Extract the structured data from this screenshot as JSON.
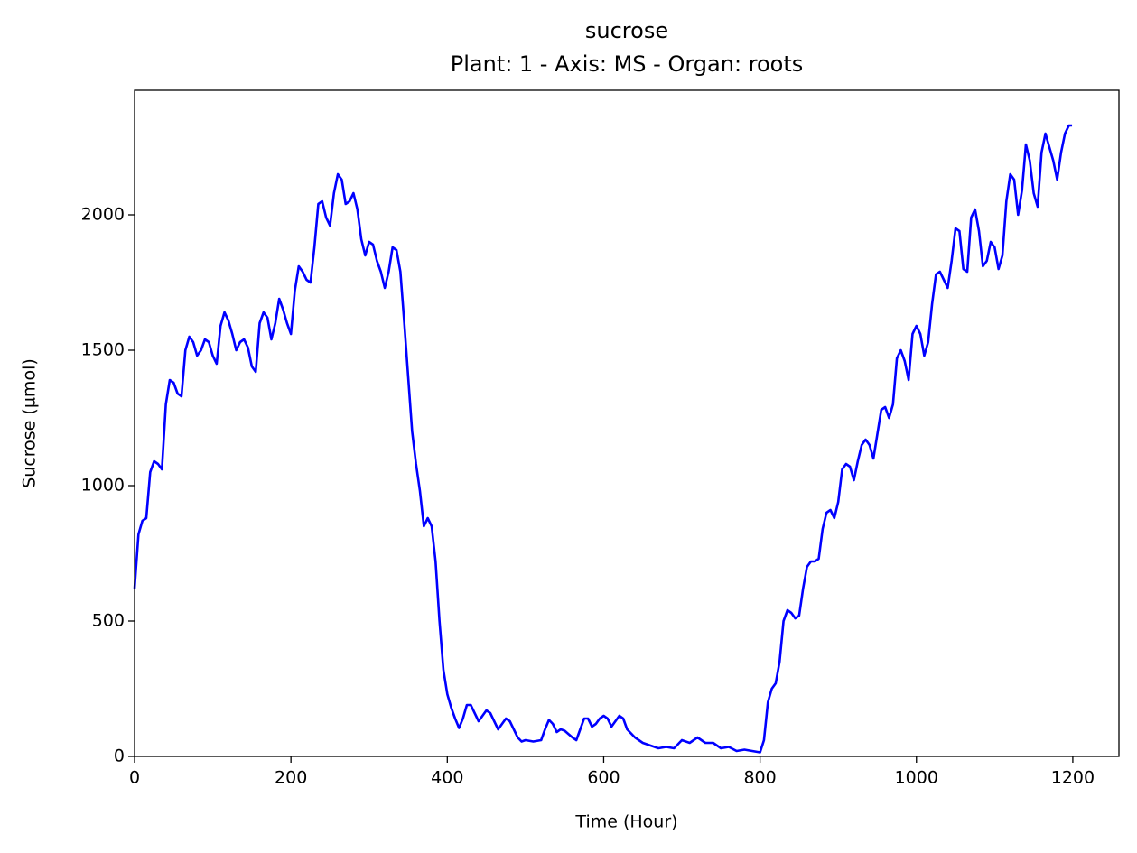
{
  "chart_data": {
    "type": "line",
    "title": "sucrose",
    "subtitle": "Plant: 1 - Axis: MS - Organ: roots",
    "x_label": "Time (Hour)",
    "y_label": "Sucrose (µmol)",
    "color": "#0000ff",
    "xlim": [
      0,
      1259
    ],
    "ylim": [
      0,
      2460
    ],
    "xticks": [
      0,
      200,
      400,
      600,
      800,
      1000,
      1200
    ],
    "yticks": [
      0,
      500,
      1000,
      1500,
      2000
    ],
    "x": [
      0,
      5,
      10,
      15,
      20,
      25,
      30,
      35,
      40,
      45,
      50,
      55,
      60,
      65,
      70,
      75,
      80,
      85,
      90,
      95,
      100,
      105,
      110,
      115,
      120,
      125,
      130,
      135,
      140,
      145,
      150,
      155,
      160,
      165,
      170,
      175,
      180,
      185,
      190,
      195,
      200,
      205,
      210,
      215,
      220,
      225,
      230,
      235,
      240,
      245,
      250,
      255,
      260,
      265,
      270,
      275,
      280,
      285,
      290,
      295,
      300,
      305,
      310,
      315,
      320,
      325,
      330,
      335,
      340,
      345,
      350,
      355,
      360,
      365,
      370,
      375,
      380,
      385,
      390,
      395,
      400,
      405,
      410,
      415,
      420,
      425,
      430,
      435,
      440,
      445,
      450,
      455,
      460,
      465,
      470,
      475,
      480,
      485,
      490,
      495,
      500,
      510,
      520,
      525,
      530,
      535,
      540,
      545,
      550,
      560,
      565,
      570,
      575,
      580,
      585,
      590,
      595,
      600,
      605,
      610,
      615,
      620,
      625,
      630,
      640,
      650,
      660,
      670,
      680,
      690,
      700,
      710,
      720,
      730,
      740,
      750,
      760,
      770,
      780,
      790,
      800,
      805,
      810,
      815,
      820,
      825,
      830,
      835,
      840,
      845,
      850,
      855,
      860,
      865,
      870,
      875,
      880,
      885,
      890,
      895,
      900,
      905,
      910,
      915,
      920,
      925,
      930,
      935,
      940,
      945,
      950,
      955,
      960,
      965,
      970,
      975,
      980,
      985,
      990,
      995,
      1000,
      1005,
      1010,
      1015,
      1020,
      1025,
      1030,
      1035,
      1040,
      1045,
      1050,
      1055,
      1060,
      1065,
      1070,
      1075,
      1080,
      1085,
      1090,
      1095,
      1100,
      1105,
      1110,
      1115,
      1120,
      1125,
      1130,
      1135,
      1140,
      1145,
      1150,
      1155,
      1160,
      1165,
      1170,
      1175,
      1180,
      1185,
      1190,
      1195,
      1199
    ],
    "values": [
      620,
      820,
      870,
      880,
      1050,
      1090,
      1080,
      1060,
      1300,
      1390,
      1380,
      1340,
      1330,
      1500,
      1550,
      1530,
      1480,
      1500,
      1540,
      1530,
      1480,
      1450,
      1590,
      1640,
      1610,
      1560,
      1500,
      1530,
      1540,
      1510,
      1440,
      1420,
      1600,
      1640,
      1620,
      1540,
      1600,
      1690,
      1650,
      1600,
      1560,
      1720,
      1810,
      1790,
      1760,
      1750,
      1880,
      2040,
      2050,
      1990,
      1960,
      2080,
      2150,
      2130,
      2040,
      2050,
      2080,
      2020,
      1910,
      1850,
      1900,
      1890,
      1830,
      1790,
      1730,
      1790,
      1880,
      1870,
      1790,
      1600,
      1400,
      1200,
      1080,
      980,
      850,
      880,
      850,
      720,
      500,
      320,
      230,
      180,
      140,
      105,
      140,
      190,
      190,
      160,
      130,
      150,
      170,
      160,
      130,
      100,
      120,
      140,
      130,
      100,
      70,
      55,
      60,
      55,
      60,
      100,
      135,
      120,
      90,
      100,
      95,
      70,
      60,
      100,
      140,
      140,
      110,
      120,
      140,
      150,
      140,
      110,
      130,
      150,
      140,
      100,
      70,
      50,
      40,
      30,
      35,
      30,
      60,
      50,
      70,
      50,
      50,
      30,
      35,
      20,
      25,
      20,
      15,
      60,
      200,
      250,
      270,
      350,
      500,
      540,
      530,
      510,
      520,
      620,
      700,
      720,
      720,
      730,
      840,
      900,
      910,
      880,
      940,
      1060,
      1080,
      1070,
      1020,
      1090,
      1150,
      1170,
      1150,
      1100,
      1190,
      1280,
      1290,
      1250,
      1300,
      1470,
      1500,
      1460,
      1390,
      1560,
      1590,
      1560,
      1480,
      1530,
      1670,
      1780,
      1790,
      1760,
      1730,
      1830,
      1950,
      1940,
      1800,
      1790,
      1990,
      2020,
      1940,
      1810,
      1830,
      1900,
      1880,
      1800,
      1850,
      2050,
      2150,
      2130,
      2000,
      2090,
      2260,
      2200,
      2080,
      2030,
      2230,
      2300,
      2250,
      2200,
      2130,
      2230,
      2300,
      2330,
      2330
    ]
  }
}
